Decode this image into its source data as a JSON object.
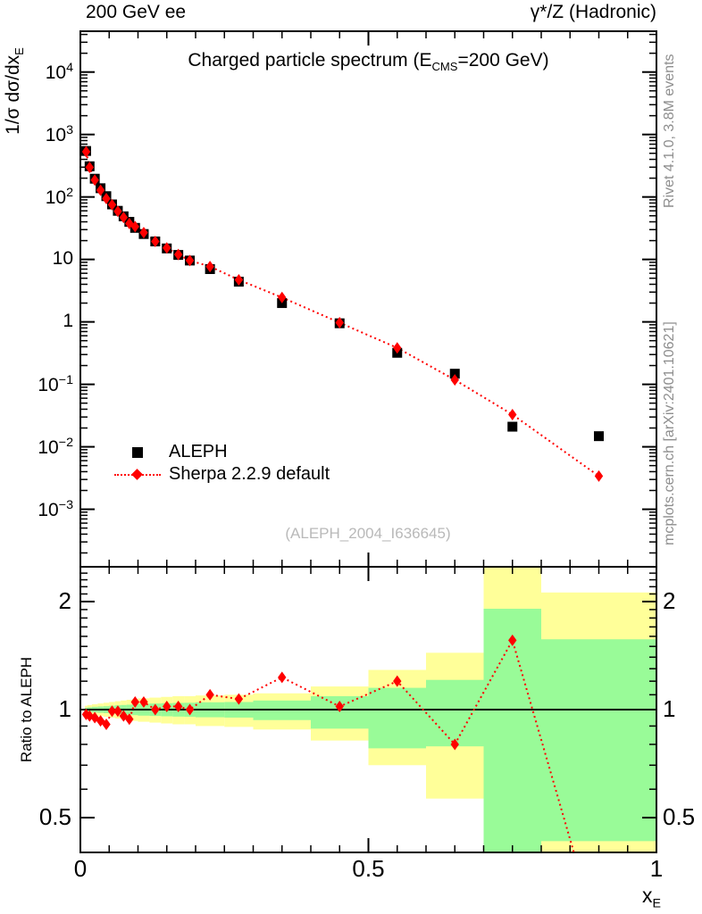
{
  "header": {
    "left": "200 GeV ee",
    "right": "γ*/Z (Hadronic)"
  },
  "title": {
    "pre": "Charged particle spectrum (E",
    "sub": "CMS",
    "post": "=200 GeV)"
  },
  "ylabel": {
    "pre": "1/σ  dσ/dx",
    "sub": "E"
  },
  "xlabel": {
    "pre": "x",
    "sub": "E"
  },
  "ratio_label": "Ratio to ALEPH",
  "watermark": "(ALEPH_2004_I636645)",
  "side_notes": {
    "top": "Rivet 4.1.0,  3.8M events",
    "bottom": "mcplots.cern.ch [arXiv:2401.10621]"
  },
  "legend": [
    {
      "label": "ALEPH",
      "marker": "filled-square",
      "color": "#000000"
    },
    {
      "label": "Sherpa 2.2.9 default",
      "marker": "filled-diamond",
      "line": "dotted",
      "color": "#ff0000"
    }
  ],
  "colors": {
    "data": "#000000",
    "mc": "#ff0000",
    "band_outer": "#ffff99",
    "band_inner": "#99fb98",
    "watermark": "#b9b9b9",
    "side_note": "#8e8e8e",
    "frame": "#000000"
  },
  "chart_data": {
    "type": "line",
    "title": "Charged particle spectrum (E_CMS=200 GeV)",
    "xlabel": "x_E",
    "ylabel": "1/σ dσ/dx_E",
    "ratio_ylabel": "Ratio to ALEPH",
    "xlim": [
      0,
      1
    ],
    "main_ylog": true,
    "main_ylim": [
      0.00012,
      45000
    ],
    "ratio_ylog": true,
    "ratio_ylim": [
      0.4,
      2.5
    ],
    "grid": false,
    "legend_position": "middle-left",
    "bin_edges": [
      0.008,
      0.012,
      0.02,
      0.03,
      0.04,
      0.05,
      0.06,
      0.07,
      0.08,
      0.09,
      0.1,
      0.12,
      0.14,
      0.16,
      0.18,
      0.2,
      0.25,
      0.3,
      0.4,
      0.5,
      0.6,
      0.7,
      0.8,
      1.0
    ],
    "x": [
      0.01,
      0.016,
      0.025,
      0.035,
      0.045,
      0.055,
      0.065,
      0.075,
      0.085,
      0.095,
      0.11,
      0.13,
      0.15,
      0.17,
      0.19,
      0.225,
      0.275,
      0.35,
      0.45,
      0.55,
      0.65,
      0.75,
      0.9
    ],
    "series": [
      {
        "name": "ALEPH",
        "marker": "filled-square",
        "color": "#000000",
        "values": [
          545,
          310,
          196,
          138,
          103,
          76,
          60,
          49,
          40,
          32,
          25.5,
          19.4,
          15.0,
          11.8,
          9.6,
          7.0,
          4.4,
          2.0,
          0.95,
          0.32,
          0.148,
          0.021,
          0.0148
        ]
      },
      {
        "name": "Sherpa 2.2.9 default",
        "marker": "filled-diamond",
        "line": "dotted",
        "color": "#ff0000",
        "values": [
          529,
          298,
          186,
          128,
          94,
          75,
          59,
          47,
          37.6,
          33.6,
          26.8,
          19.4,
          15.3,
          12.0,
          9.6,
          7.7,
          4.71,
          2.46,
          0.97,
          0.384,
          0.118,
          0.0328,
          0.0034
        ]
      }
    ],
    "ratio_series": {
      "name": "Sherpa 2.2.9 default / ALEPH",
      "values": [
        0.97,
        0.96,
        0.95,
        0.93,
        0.91,
        0.99,
        0.99,
        0.96,
        0.94,
        1.05,
        1.05,
        1.0,
        1.02,
        1.02,
        1.0,
        1.1,
        1.07,
        1.23,
        1.02,
        1.2,
        0.8,
        1.56,
        0.23
      ]
    },
    "ratio_bands": [
      {
        "x0": 0.008,
        "x1": 0.012,
        "outer": [
          0.975,
          1.025
        ],
        "inner": [
          0.988,
          1.012
        ]
      },
      {
        "x0": 0.012,
        "x1": 0.02,
        "outer": [
          0.97,
          1.03
        ],
        "inner": [
          0.985,
          1.015
        ]
      },
      {
        "x0": 0.02,
        "x1": 0.03,
        "outer": [
          0.965,
          1.035
        ],
        "inner": [
          0.982,
          1.018
        ]
      },
      {
        "x0": 0.03,
        "x1": 0.04,
        "outer": [
          0.96,
          1.04
        ],
        "inner": [
          0.98,
          1.02
        ]
      },
      {
        "x0": 0.04,
        "x1": 0.05,
        "outer": [
          0.955,
          1.045
        ],
        "inner": [
          0.978,
          1.022
        ]
      },
      {
        "x0": 0.05,
        "x1": 0.06,
        "outer": [
          0.95,
          1.05
        ],
        "inner": [
          0.975,
          1.025
        ]
      },
      {
        "x0": 0.06,
        "x1": 0.07,
        "outer": [
          0.945,
          1.055
        ],
        "inner": [
          0.972,
          1.028
        ]
      },
      {
        "x0": 0.07,
        "x1": 0.08,
        "outer": [
          0.94,
          1.06
        ],
        "inner": [
          0.97,
          1.03
        ]
      },
      {
        "x0": 0.08,
        "x1": 0.09,
        "outer": [
          0.935,
          1.065
        ],
        "inner": [
          0.968,
          1.032
        ]
      },
      {
        "x0": 0.09,
        "x1": 0.1,
        "outer": [
          0.93,
          1.07
        ],
        "inner": [
          0.965,
          1.035
        ]
      },
      {
        "x0": 0.1,
        "x1": 0.12,
        "outer": [
          0.925,
          1.075
        ],
        "inner": [
          0.962,
          1.038
        ]
      },
      {
        "x0": 0.12,
        "x1": 0.14,
        "outer": [
          0.92,
          1.08
        ],
        "inner": [
          0.96,
          1.04
        ]
      },
      {
        "x0": 0.14,
        "x1": 0.16,
        "outer": [
          0.915,
          1.085
        ],
        "inner": [
          0.958,
          1.042
        ]
      },
      {
        "x0": 0.16,
        "x1": 0.18,
        "outer": [
          0.91,
          1.09
        ],
        "inner": [
          0.956,
          1.044
        ]
      },
      {
        "x0": 0.18,
        "x1": 0.2,
        "outer": [
          0.91,
          1.09
        ],
        "inner": [
          0.955,
          1.045
        ]
      },
      {
        "x0": 0.2,
        "x1": 0.25,
        "outer": [
          0.9,
          1.095
        ],
        "inner": [
          0.952,
          1.048
        ]
      },
      {
        "x0": 0.25,
        "x1": 0.3,
        "outer": [
          0.895,
          1.1
        ],
        "inner": [
          0.95,
          1.05
        ]
      },
      {
        "x0": 0.3,
        "x1": 0.4,
        "outer": [
          0.88,
          1.11
        ],
        "inner": [
          0.935,
          1.06
        ]
      },
      {
        "x0": 0.4,
        "x1": 0.5,
        "outer": [
          0.82,
          1.16
        ],
        "inner": [
          0.885,
          1.09
        ]
      },
      {
        "x0": 0.5,
        "x1": 0.6,
        "outer": [
          0.7,
          1.29
        ],
        "inner": [
          0.78,
          1.15
        ]
      },
      {
        "x0": 0.6,
        "x1": 0.7,
        "outer": [
          0.565,
          1.44
        ],
        "inner": [
          0.79,
          1.21
        ]
      },
      {
        "x0": 0.7,
        "x1": 0.8,
        "outer": [
          0.4,
          2.5
        ],
        "inner": [
          0.4,
          1.91
        ]
      },
      {
        "x0": 0.8,
        "x1": 1.0,
        "outer": [
          0.4,
          2.12
        ],
        "inner": [
          0.43,
          1.57
        ]
      }
    ],
    "y_ticks": [
      {
        "v": 10000,
        "base": "10",
        "exp": "4"
      },
      {
        "v": 1000,
        "base": "10",
        "exp": "3"
      },
      {
        "v": 100,
        "base": "10",
        "exp": "2"
      },
      {
        "v": 10,
        "base": "10",
        "exp": ""
      },
      {
        "v": 1,
        "base": "1",
        "exp": ""
      },
      {
        "v": 0.1,
        "base": "10",
        "exp": "−1"
      },
      {
        "v": 0.01,
        "base": "10",
        "exp": "−2"
      },
      {
        "v": 0.001,
        "base": "10",
        "exp": "−3"
      }
    ],
    "ratio_ticks": [
      {
        "v": 2,
        "label": "2"
      },
      {
        "v": 1,
        "label": "1"
      },
      {
        "v": 0.5,
        "label": "0.5"
      }
    ],
    "x_ticks": [
      {
        "v": 0,
        "label": "0"
      },
      {
        "v": 0.5,
        "label": "0.5"
      },
      {
        "v": 1,
        "label": "1"
      }
    ]
  }
}
